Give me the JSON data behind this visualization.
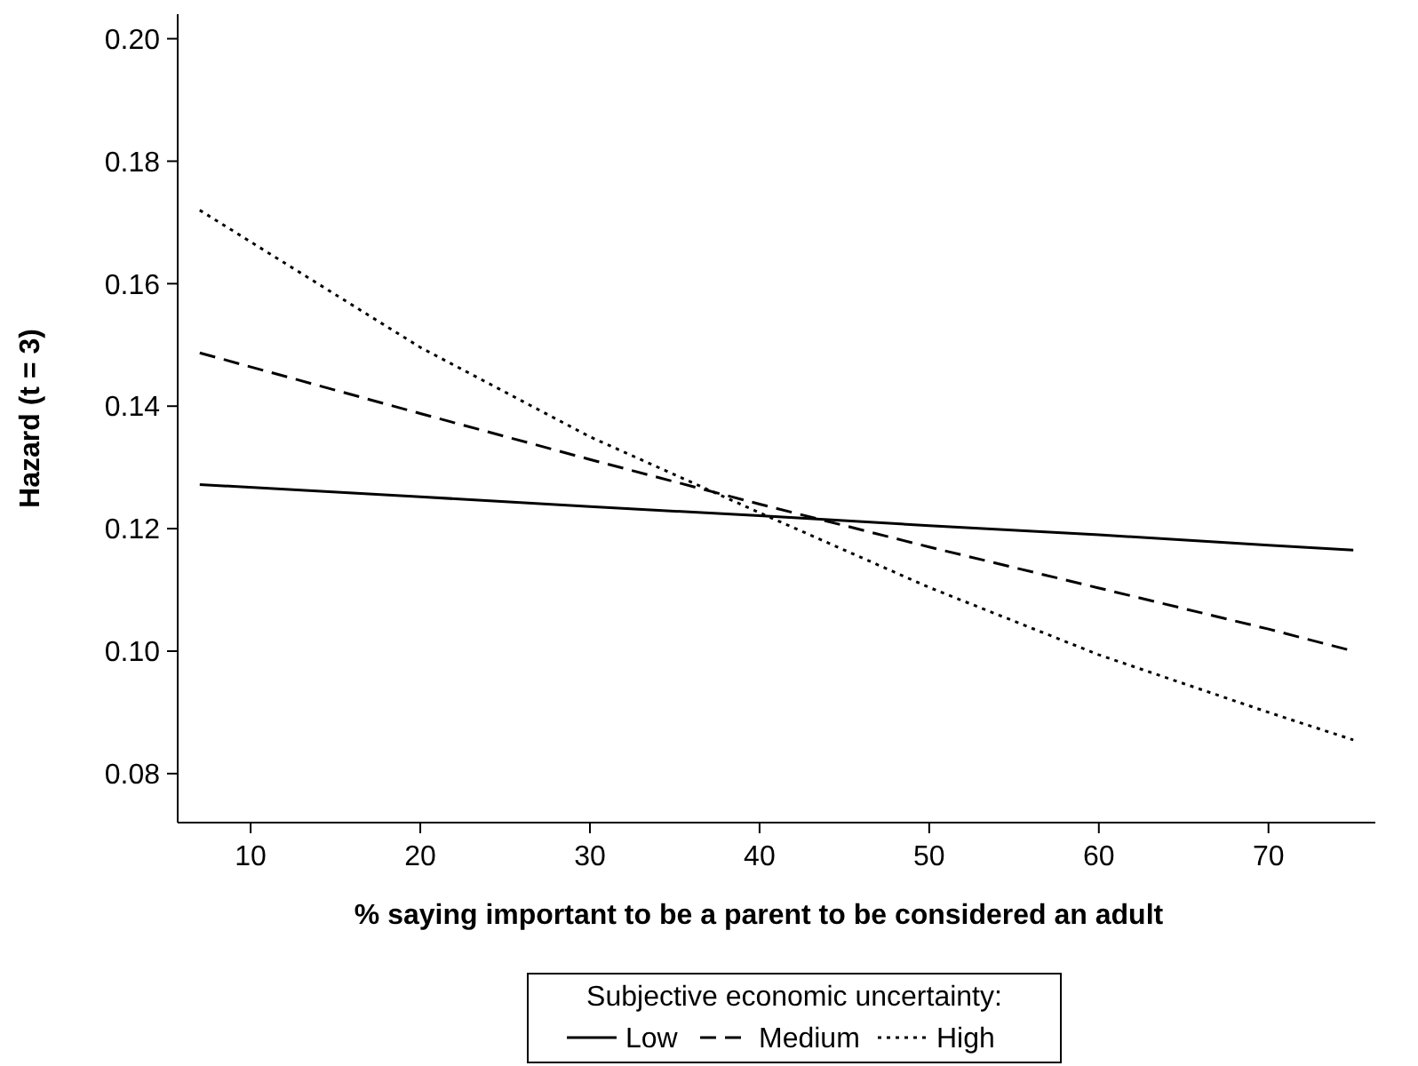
{
  "chart_data": {
    "type": "line",
    "xlabel": "% saying important to be a parent to be considered an adult",
    "ylabel": "Hazard (t = 3)",
    "legend_title": "Subjective economic uncertainty:",
    "legend": "bottom",
    "grid": false,
    "marker": "none",
    "xlim": [
      5.7,
      76.3
    ],
    "ylim": [
      0.072,
      0.204
    ],
    "xticks": [
      10,
      20,
      30,
      40,
      50,
      60,
      70
    ],
    "yticks": [
      {
        "value": 0.08,
        "label": "0.08"
      },
      {
        "value": 0.1,
        "label": "0.10"
      },
      {
        "value": 0.12,
        "label": "0.12"
      },
      {
        "value": 0.14,
        "label": "0.14"
      },
      {
        "value": 0.16,
        "label": "0.16"
      },
      {
        "value": 0.18,
        "label": "0.18"
      },
      {
        "value": 0.2,
        "label": "0.20"
      }
    ],
    "x": [
      7,
      20,
      30,
      40,
      50,
      60,
      70,
      75
    ],
    "series": [
      {
        "name": "Low",
        "color": "#000000",
        "line_style": "solid",
        "values": [
          0.1272,
          0.1252,
          0.1236,
          0.1221,
          0.1205,
          0.119,
          0.1173,
          0.1165
        ]
      },
      {
        "name": "Medium",
        "color": "#000000",
        "line_style": "dashed",
        "values": [
          0.1487,
          0.1388,
          0.1313,
          0.124,
          0.117,
          0.1103,
          0.1036,
          0.1
        ]
      },
      {
        "name": "High",
        "color": "#000000",
        "line_style": "dotted",
        "values": [
          0.172,
          0.1496,
          0.135,
          0.1226,
          0.1104,
          0.0994,
          0.09,
          0.0855
        ]
      }
    ]
  }
}
